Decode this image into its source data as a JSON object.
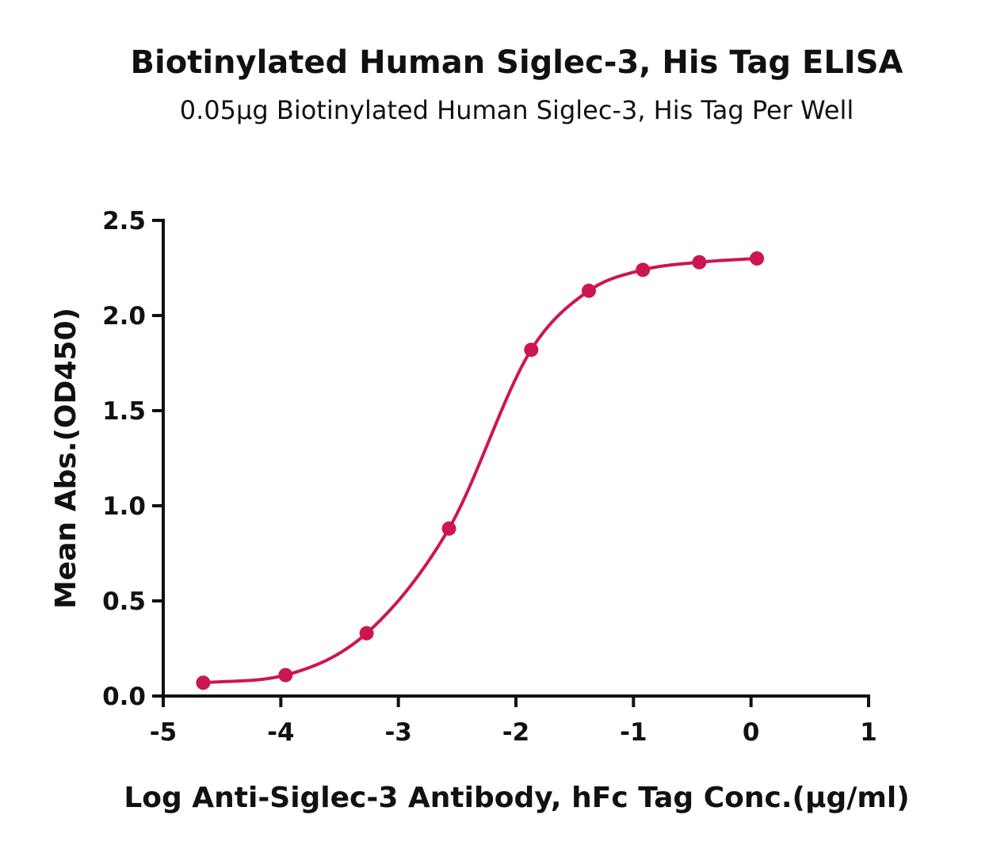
{
  "chart_data": {
    "type": "scatter",
    "title": "Biotinylated Human Siglec-3, His Tag ELISA",
    "subtitle": "0.05μg Biotinylated Human Siglec-3, His Tag Per Well",
    "xlabel": "Log Anti-Siglec-3 Antibody, hFc Tag Conc.(μg/ml)",
    "ylabel": "Mean Abs.(OD450)",
    "xlim": [
      -5,
      1
    ],
    "ylim": [
      0,
      2.5
    ],
    "x_ticks": [
      -5,
      -4,
      -3,
      -2,
      -1,
      0,
      1
    ],
    "x_tick_labels": [
      "-5",
      "-4",
      "-3",
      "-2",
      "-1",
      "0",
      "1"
    ],
    "y_ticks": [
      0,
      0.5,
      1.0,
      1.5,
      2.0,
      2.5
    ],
    "y_tick_labels": [
      "0.0",
      "0.5",
      "1.0",
      "1.5",
      "2.0",
      "2.5"
    ],
    "grid": false,
    "legend": "none",
    "color": "#cc1650",
    "series": [
      {
        "x": [
          -4.66,
          -3.96,
          -3.27,
          -2.57,
          -1.87,
          -1.38,
          -0.92,
          -0.44,
          0.05
        ],
        "y": [
          0.07,
          0.11,
          0.33,
          0.88,
          1.82,
          2.13,
          2.24,
          2.28,
          2.3
        ],
        "fit": "sigmoidal"
      }
    ]
  }
}
